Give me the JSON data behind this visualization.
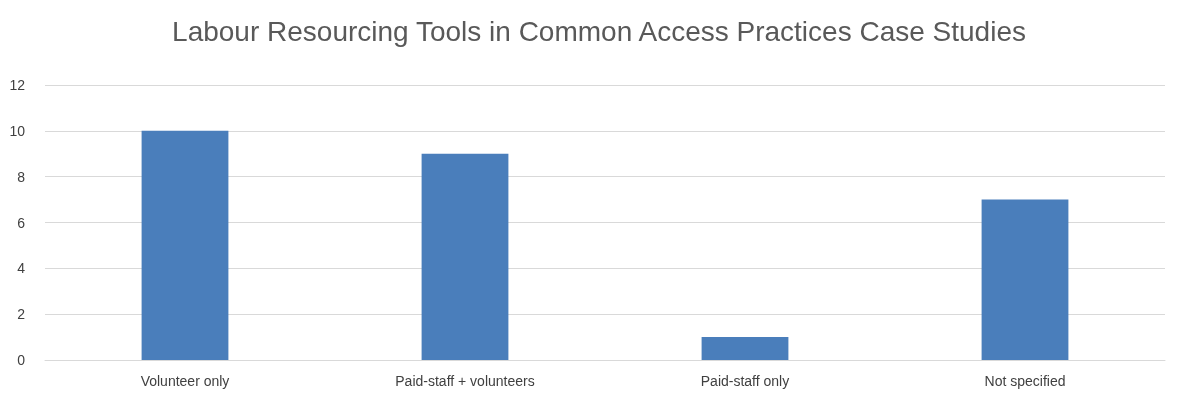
{
  "chart_data": {
    "type": "bar",
    "title": "Labour Resourcing Tools in Common Access Practices Case Studies",
    "categories": [
      "Volunteer only",
      "Paid-staff + volunteers",
      "Paid-staff only",
      "Not specified"
    ],
    "values": [
      10,
      9,
      1,
      7
    ],
    "color": "#4a7ebb",
    "ylim": [
      0,
      12
    ],
    "yticks": [
      0,
      2,
      4,
      6,
      8,
      10,
      12
    ],
    "grid": "y"
  }
}
